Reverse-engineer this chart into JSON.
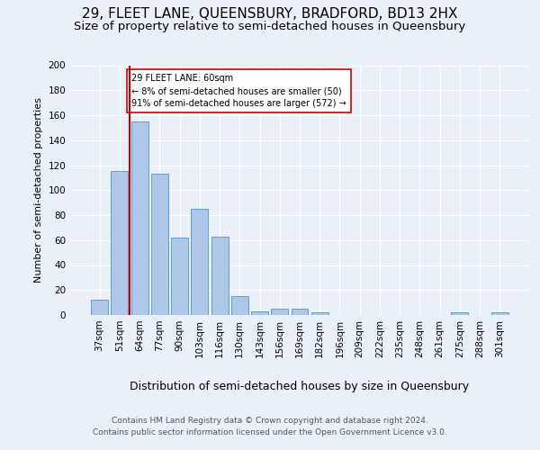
{
  "title1": "29, FLEET LANE, QUEENSBURY, BRADFORD, BD13 2HX",
  "title2": "Size of property relative to semi-detached houses in Queensbury",
  "xlabel": "Distribution of semi-detached houses by size in Queensbury",
  "ylabel": "Number of semi-detached properties",
  "footer1": "Contains HM Land Registry data © Crown copyright and database right 2024.",
  "footer2": "Contains public sector information licensed under the Open Government Licence v3.0.",
  "categories": [
    "37sqm",
    "51sqm",
    "64sqm",
    "77sqm",
    "90sqm",
    "103sqm",
    "116sqm",
    "130sqm",
    "143sqm",
    "156sqm",
    "169sqm",
    "182sqm",
    "196sqm",
    "209sqm",
    "222sqm",
    "235sqm",
    "248sqm",
    "261sqm",
    "275sqm",
    "288sqm",
    "301sqm"
  ],
  "values": [
    12,
    115,
    155,
    113,
    62,
    85,
    63,
    15,
    3,
    5,
    5,
    2,
    0,
    0,
    0,
    0,
    0,
    0,
    2,
    0,
    2
  ],
  "bar_color": "#aec6e8",
  "bar_edge_color": "#5a9fd4",
  "highlight_color": "#cc0000",
  "annotation_line": "29 FLEET LANE: 60sqm",
  "annotation_line2": "← 8% of semi-detached houses are smaller (50)",
  "annotation_line3": "91% of semi-detached houses are larger (572) →",
  "annotation_box_color": "#ffffff",
  "annotation_box_edge": "#cc0000",
  "ylim": [
    0,
    200
  ],
  "yticks": [
    0,
    20,
    40,
    60,
    80,
    100,
    120,
    140,
    160,
    180,
    200
  ],
  "bg_color": "#eaf0f8",
  "plot_bg_color": "#eaf0f8",
  "title1_fontsize": 11,
  "title2_fontsize": 9.5,
  "xlabel_fontsize": 9,
  "ylabel_fontsize": 8,
  "tick_fontsize": 7.5,
  "footer_fontsize": 6.5
}
